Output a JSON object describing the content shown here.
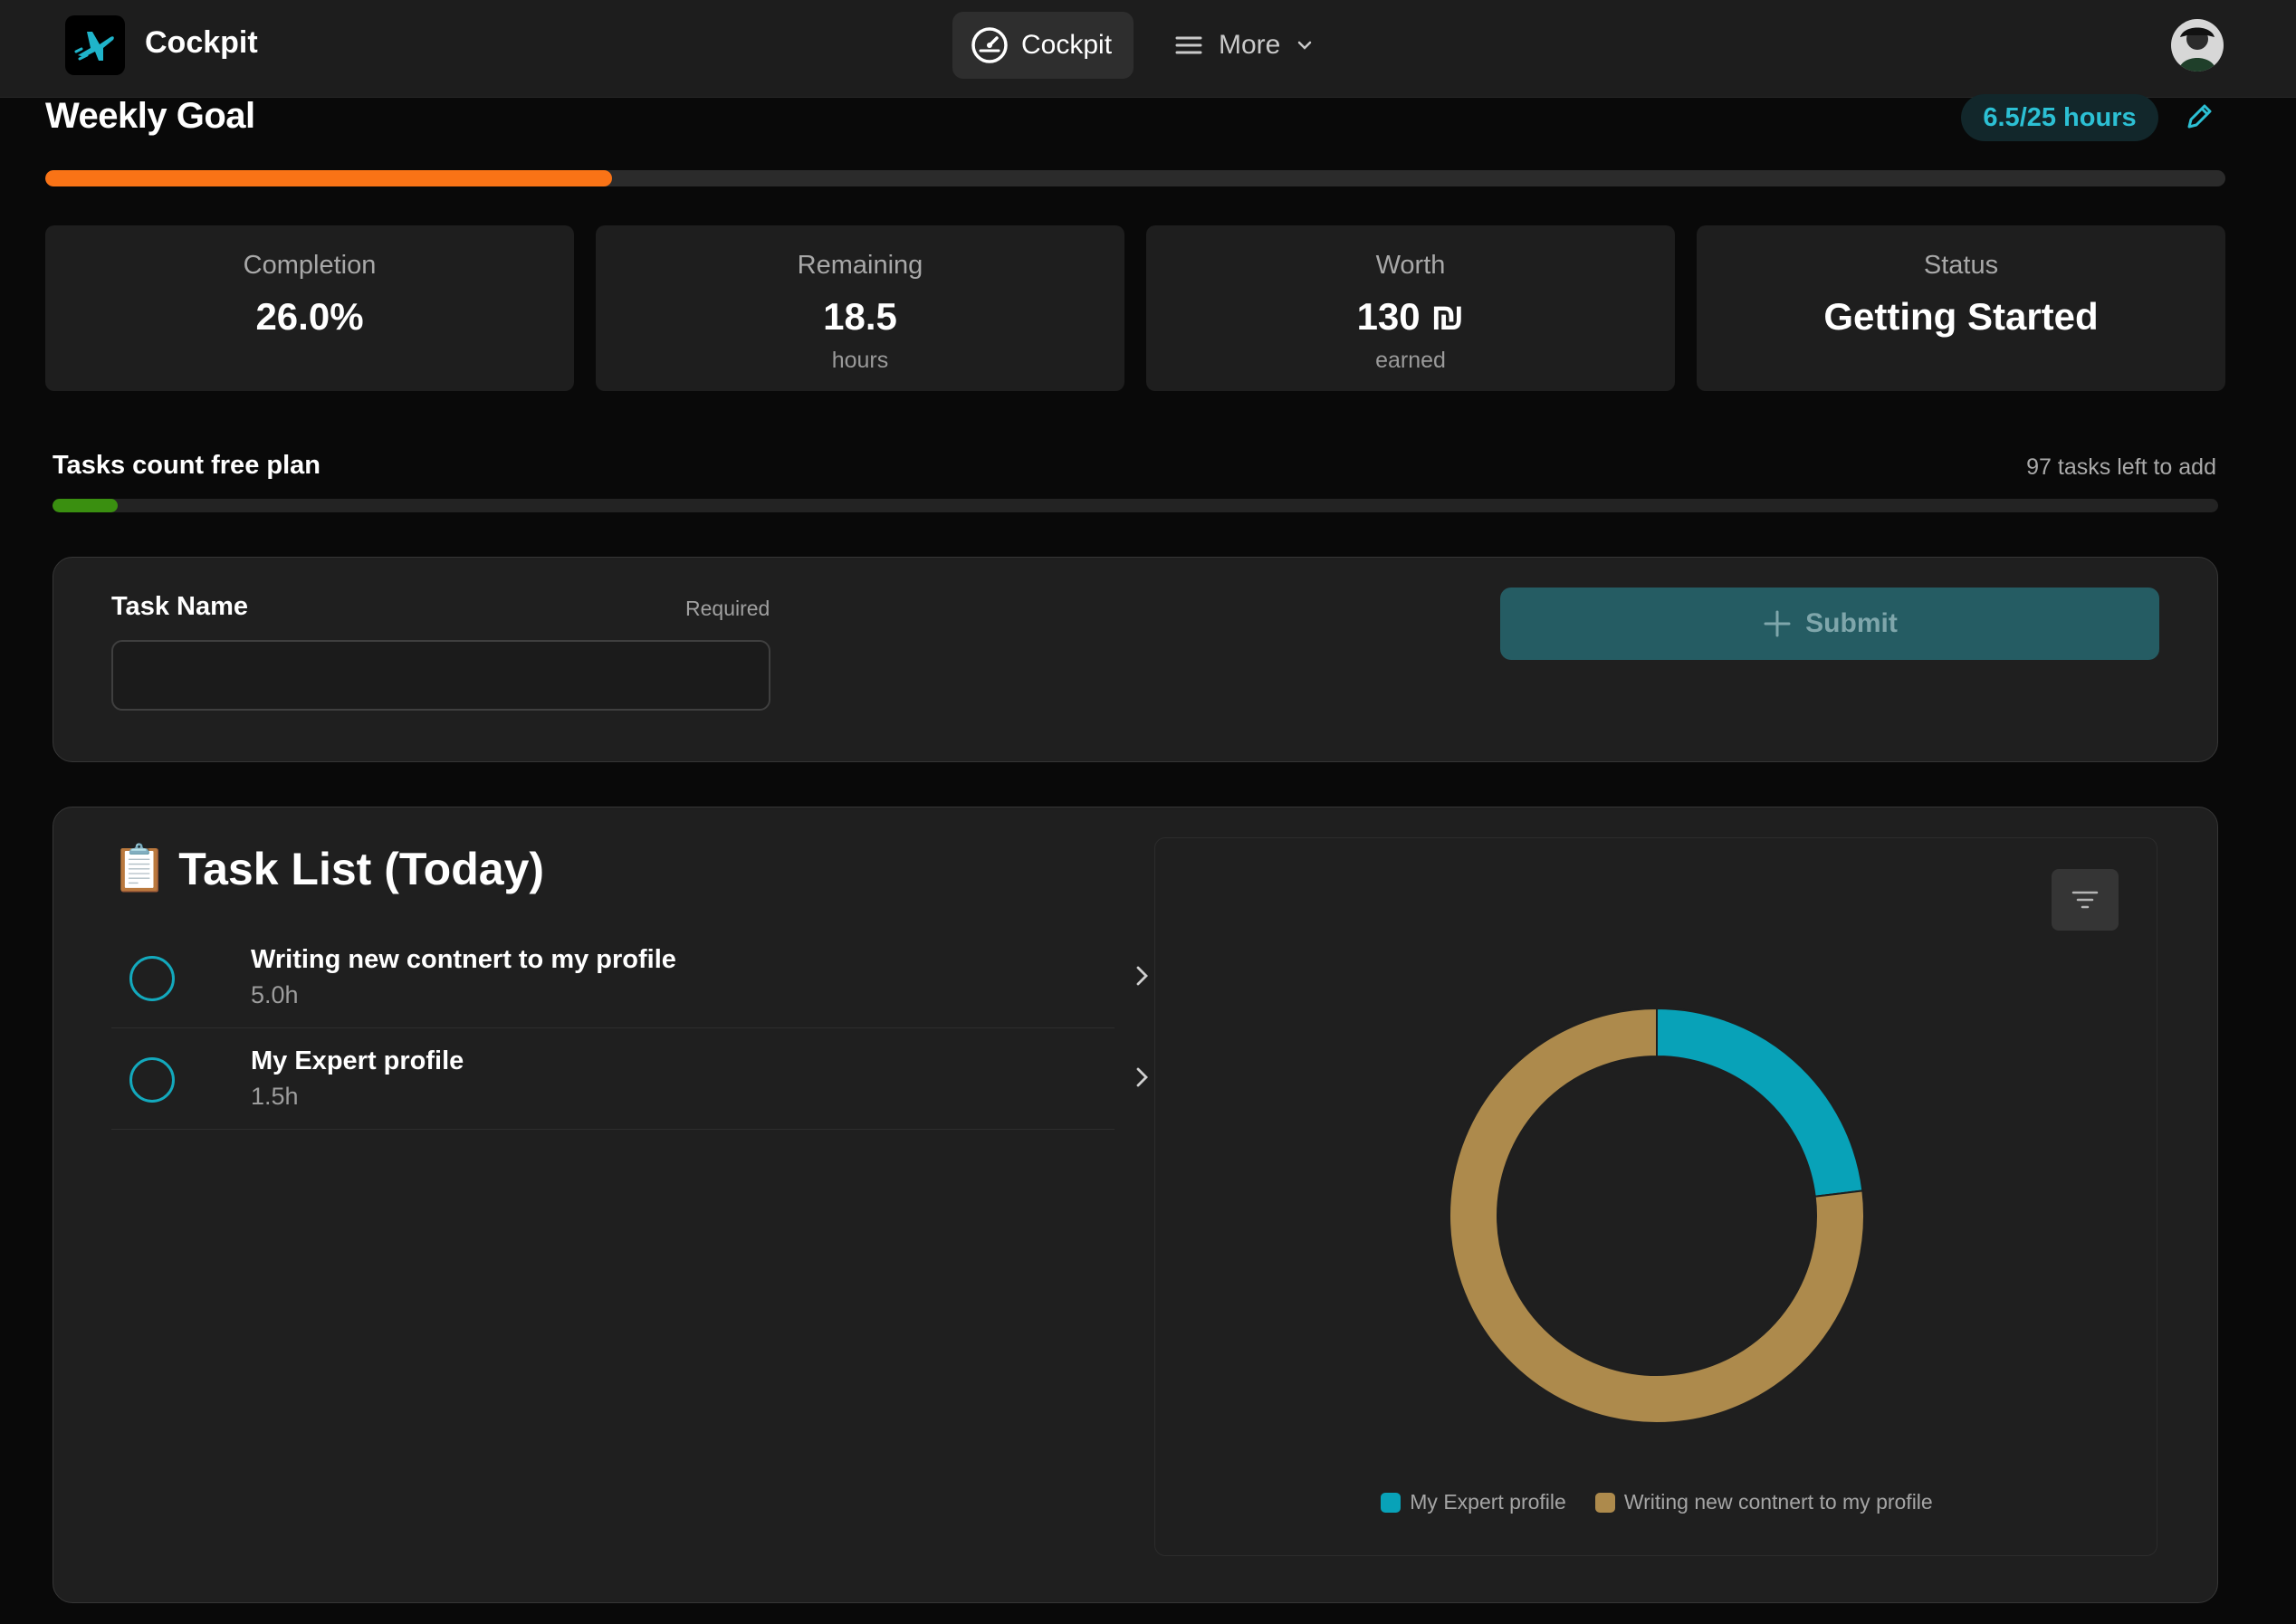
{
  "topbar": {
    "app_name": "Cockpit",
    "nav_active_label": "Cockpit",
    "nav_more_label": "More"
  },
  "weekly_goal": {
    "title": "Weekly Goal",
    "hours_pill": "6.5/25 hours",
    "progress_fraction": 0.26,
    "accent_color": "#f97316"
  },
  "stats": [
    {
      "label": "Completion",
      "value": "26.0%",
      "sub": ""
    },
    {
      "label": "Remaining",
      "value": "18.5",
      "sub": "hours"
    },
    {
      "label": "Worth",
      "value": "130 ₪",
      "sub": "earned"
    },
    {
      "label": "Status",
      "value": "Getting Started",
      "sub": ""
    }
  ],
  "tasks_count": {
    "title": "Tasks count free plan",
    "left_text": "97 tasks left to add",
    "progress_fraction": 0.03,
    "bar_color": "#3a8f10"
  },
  "task_form": {
    "label": "Task Name",
    "required_text": "Required",
    "input_value": "",
    "submit_label": "Submit"
  },
  "task_list": {
    "emoji": "📋",
    "title": "Task List (Today)",
    "tasks": [
      {
        "name": "Writing new contnert to my profile",
        "hours": "5.0h"
      },
      {
        "name": "My Expert profile",
        "hours": "1.5h"
      }
    ]
  },
  "chart_data": {
    "type": "pie",
    "variant": "donut",
    "labels": [
      "My Expert profile",
      "Writing new contnert to my profile"
    ],
    "values": [
      1.5,
      5.0
    ],
    "colors": [
      "#08a2b8",
      "#ad8a4c"
    ],
    "legend_position": "bottom"
  }
}
